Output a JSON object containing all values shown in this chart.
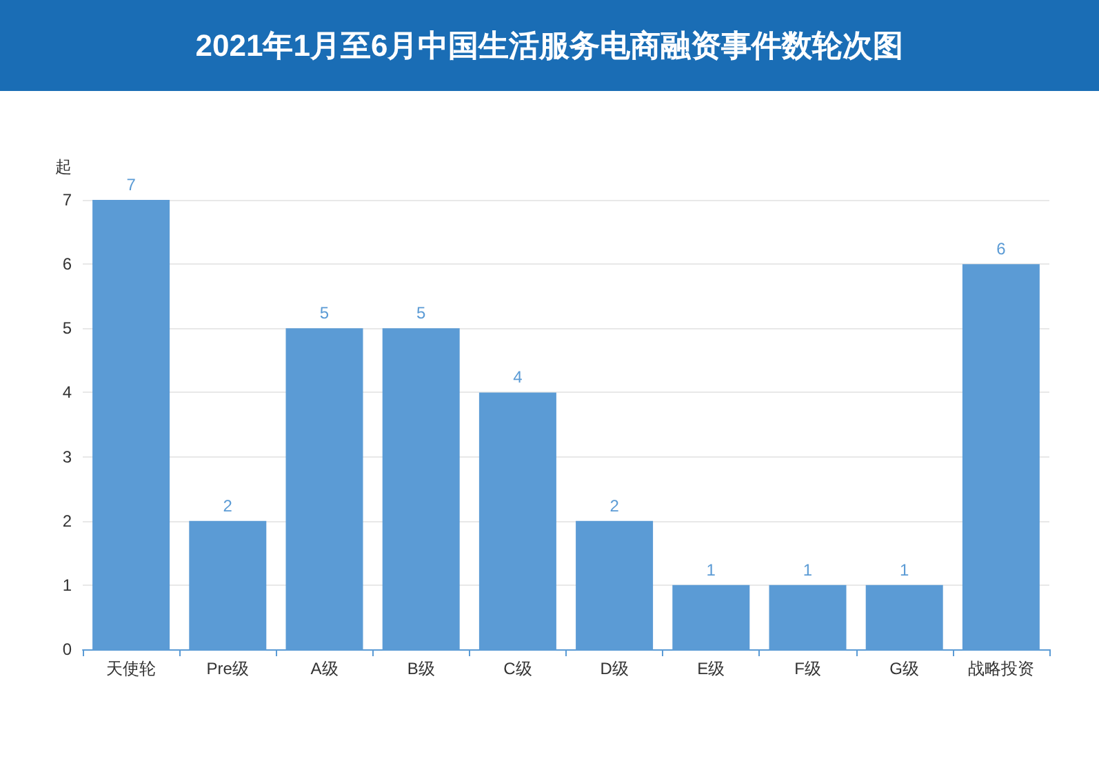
{
  "chart_data": {
    "type": "bar",
    "title": "2021年1月至6月中国生活服务电商融资事件数轮次图",
    "ylabel": "起",
    "categories": [
      "天使轮",
      "Pre级",
      "A级",
      "B级",
      "C级",
      "D级",
      "E级",
      "F级",
      "G级",
      "战略投资"
    ],
    "values": [
      7,
      2,
      5,
      5,
      4,
      2,
      1,
      1,
      1,
      6
    ],
    "color": "#5b9bd5",
    "ylim": [
      0,
      7
    ],
    "yticks": [
      0,
      1,
      2,
      3,
      4,
      5,
      6,
      7
    ],
    "grid": "y",
    "data_labels": true
  }
}
